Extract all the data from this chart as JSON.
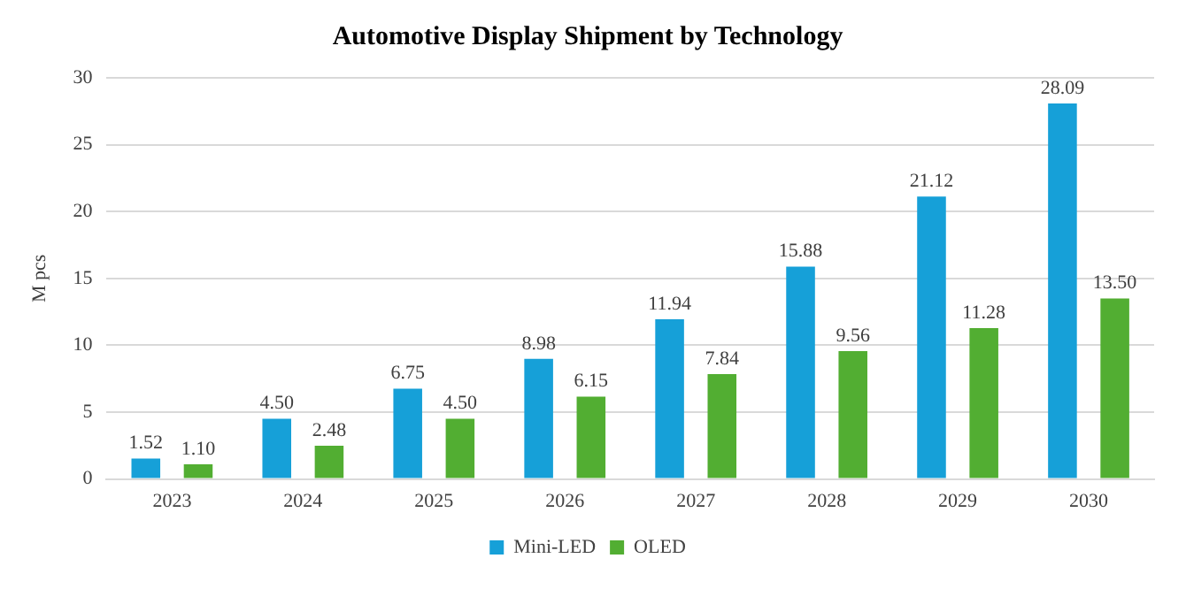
{
  "chart_data": {
    "type": "bar",
    "title": "Automotive Display Shipment by Technology",
    "ylabel": "M pcs",
    "categories": [
      "2023",
      "2024",
      "2025",
      "2026",
      "2027",
      "2028",
      "2029",
      "2030"
    ],
    "series": [
      {
        "name": "Mini-LED",
        "color": "#16a0d8",
        "values": [
          1.52,
          4.5,
          6.75,
          8.98,
          11.94,
          15.88,
          21.12,
          28.09
        ],
        "value_labels": [
          "1.52",
          "4.50",
          "6.75",
          "8.98",
          "11.94",
          "15.88",
          "21.12",
          "28.09"
        ]
      },
      {
        "name": "OLED",
        "color": "#52ae32",
        "values": [
          1.1,
          2.48,
          4.5,
          6.15,
          7.84,
          9.56,
          11.28,
          13.5
        ],
        "value_labels": [
          "1.10",
          "2.48",
          "4.50",
          "6.15",
          "7.84",
          "9.56",
          "11.28",
          "13.50"
        ]
      }
    ],
    "ylim": [
      0,
      30
    ],
    "yticks": [
      0,
      5,
      10,
      15,
      20,
      25,
      30
    ],
    "grid": "y",
    "legend": "bottom"
  }
}
